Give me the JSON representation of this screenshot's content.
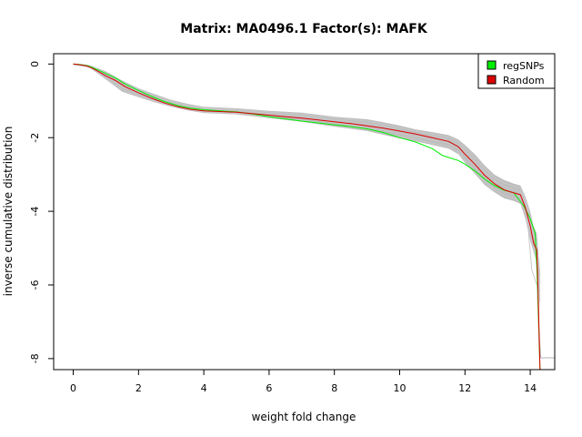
{
  "chart_data": {
    "type": "line",
    "title": "Matrix: MA0496.1 Factor(s): MAFK",
    "xlabel": "weight fold change",
    "ylabel": "inverse cumulative distribution",
    "xlim": [
      -0.6,
      14.75
    ],
    "ylim": [
      -8.3,
      0.28
    ],
    "x_ticks": [
      0,
      2,
      4,
      6,
      8,
      10,
      12,
      14
    ],
    "y_ticks": [
      0,
      -2,
      -4,
      -6,
      -8
    ],
    "grid": false,
    "legend_position": "top-right",
    "legend": [
      {
        "label": "regSNPs",
        "color": "#00ee00"
      },
      {
        "label": "Random",
        "color": "#dd0000"
      }
    ],
    "colors": {
      "regSNPs": "#00ee00",
      "Random": "#dd0000",
      "random_band": "#bebebe",
      "random_runs": "#c8c8c8",
      "random_tail": "#f2b0b0"
    },
    "series": [
      {
        "name": "regSNPs",
        "x": [
          0,
          0.2,
          0.4,
          0.6,
          0.8,
          1.0,
          1.3,
          1.6,
          2.0,
          2.4,
          2.8,
          3.2,
          3.6,
          4.0,
          4.5,
          5.0,
          5.5,
          6.0,
          6.5,
          7.0,
          7.5,
          8.0,
          8.5,
          9.0,
          9.5,
          10.0,
          10.5,
          11.0,
          11.3,
          11.5,
          11.8,
          12.0,
          12.3,
          12.6,
          12.9,
          13.2,
          13.5,
          13.8,
          14.0,
          14.15,
          14.2,
          14.25,
          14.3
        ],
        "y": [
          0,
          -0.01,
          -0.04,
          -0.1,
          -0.18,
          -0.26,
          -0.38,
          -0.55,
          -0.72,
          -0.88,
          -1.02,
          -1.13,
          -1.2,
          -1.24,
          -1.27,
          -1.3,
          -1.36,
          -1.43,
          -1.49,
          -1.55,
          -1.6,
          -1.65,
          -1.7,
          -1.76,
          -1.86,
          -2.0,
          -2.12,
          -2.3,
          -2.48,
          -2.54,
          -2.62,
          -2.72,
          -2.9,
          -3.12,
          -3.3,
          -3.43,
          -3.5,
          -3.85,
          -4.2,
          -4.6,
          -5.5,
          -6.8,
          -8.3
        ]
      },
      {
        "name": "Random",
        "x": [
          0,
          0.2,
          0.4,
          0.6,
          0.8,
          1.0,
          1.3,
          1.6,
          2.0,
          2.4,
          2.8,
          3.2,
          3.6,
          4.0,
          4.5,
          5.0,
          5.5,
          6.0,
          6.5,
          7.0,
          7.5,
          8.0,
          8.5,
          9.0,
          9.5,
          10.0,
          10.5,
          11.0,
          11.5,
          11.8,
          12.0,
          12.3,
          12.6,
          12.9,
          13.2,
          13.5,
          13.7,
          13.85,
          14.0,
          14.1,
          14.2,
          14.25,
          14.3
        ],
        "y": [
          0,
          -0.02,
          -0.05,
          -0.12,
          -0.22,
          -0.32,
          -0.45,
          -0.62,
          -0.78,
          -0.93,
          -1.06,
          -1.16,
          -1.23,
          -1.27,
          -1.29,
          -1.31,
          -1.35,
          -1.39,
          -1.43,
          -1.47,
          -1.52,
          -1.57,
          -1.62,
          -1.68,
          -1.74,
          -1.82,
          -1.9,
          -2.0,
          -2.1,
          -2.25,
          -2.45,
          -2.72,
          -3.02,
          -3.25,
          -3.42,
          -3.5,
          -3.55,
          -3.9,
          -4.4,
          -4.85,
          -5.05,
          -6.5,
          -8.3
        ]
      }
    ],
    "random_band": {
      "x": [
        0,
        0.5,
        1.0,
        1.5,
        2.0,
        2.5,
        3.0,
        3.5,
        4.0,
        5.0,
        6.0,
        7.0,
        8.0,
        9.0,
        9.5,
        10.0,
        10.5,
        11.0,
        11.5,
        11.8,
        12.0,
        12.3,
        12.6,
        12.9,
        13.2,
        13.5,
        13.7,
        13.85,
        14.0,
        14.1,
        14.2,
        14.3
      ],
      "upper": [
        0,
        -0.03,
        -0.2,
        -0.45,
        -0.66,
        -0.82,
        -0.97,
        -1.08,
        -1.16,
        -1.2,
        -1.27,
        -1.32,
        -1.43,
        -1.5,
        -1.58,
        -1.67,
        -1.78,
        -1.85,
        -1.93,
        -2.05,
        -2.2,
        -2.45,
        -2.75,
        -3.0,
        -3.15,
        -3.25,
        -3.3,
        -3.6,
        -4.0,
        -4.4,
        -4.6,
        -5.6
      ],
      "lower": [
        -0.02,
        -0.1,
        -0.42,
        -0.75,
        -0.9,
        -1.04,
        -1.16,
        -1.26,
        -1.33,
        -1.37,
        -1.47,
        -1.57,
        -1.7,
        -1.82,
        -1.92,
        -2.02,
        -2.1,
        -2.2,
        -2.3,
        -2.45,
        -2.68,
        -2.98,
        -3.28,
        -3.48,
        -3.65,
        -3.72,
        -3.8,
        -4.2,
        -4.8,
        -5.1,
        -5.4,
        -6.6
      ]
    }
  }
}
